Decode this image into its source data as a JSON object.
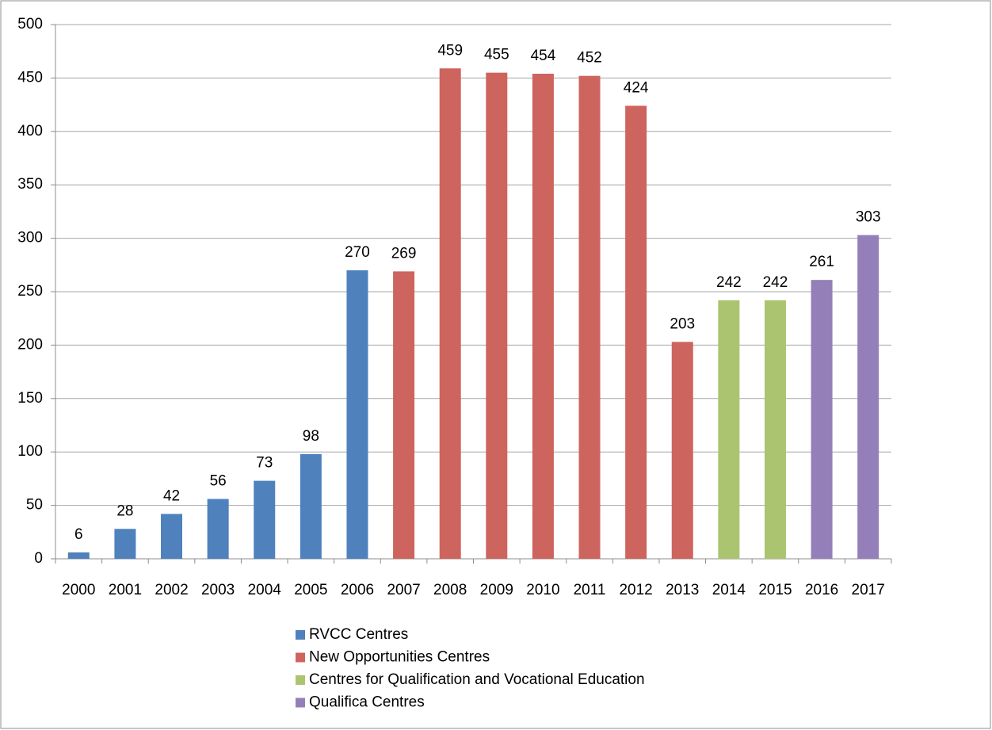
{
  "chart_data": {
    "type": "bar",
    "categories": [
      "2000",
      "2001",
      "2002",
      "2003",
      "2004",
      "2005",
      "2006",
      "2007",
      "2008",
      "2009",
      "2010",
      "2011",
      "2012",
      "2013",
      "2014",
      "2015",
      "2016",
      "2017"
    ],
    "series": [
      {
        "name": "RVCC Centres",
        "color": "#4f81bd",
        "values": [
          6,
          28,
          42,
          56,
          73,
          98,
          270,
          null,
          null,
          null,
          null,
          null,
          null,
          null,
          null,
          null,
          null,
          null
        ]
      },
      {
        "name": "New Opportunities Centres",
        "color": "#cd645e",
        "values": [
          null,
          null,
          null,
          null,
          null,
          null,
          null,
          269,
          459,
          455,
          454,
          452,
          424,
          203,
          null,
          null,
          null,
          null
        ]
      },
      {
        "name": "Centres for Qualification and Vocational Education",
        "color": "#abc46f",
        "values": [
          null,
          null,
          null,
          null,
          null,
          null,
          null,
          null,
          null,
          null,
          null,
          null,
          null,
          null,
          242,
          242,
          null,
          null
        ]
      },
      {
        "name": "Qualifica Centres",
        "color": "#957fb8",
        "values": [
          null,
          null,
          null,
          null,
          null,
          null,
          null,
          null,
          null,
          null,
          null,
          null,
          null,
          null,
          null,
          null,
          261,
          303
        ]
      }
    ],
    "ylim": [
      0,
      500
    ],
    "yticks": [
      0,
      50,
      100,
      150,
      200,
      250,
      300,
      350,
      400,
      450,
      500
    ],
    "grid": true,
    "legend": "bottom",
    "data_labels": true
  }
}
